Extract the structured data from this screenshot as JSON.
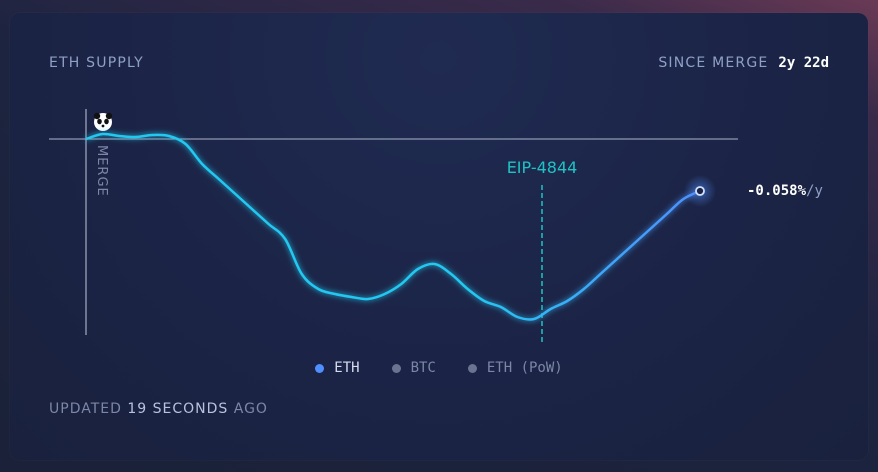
{
  "header": {
    "title": "ETH SUPPLY"
  },
  "since": {
    "label": "SINCE MERGE",
    "value": "2y 22d"
  },
  "rate": {
    "value": "-0.058%",
    "unit": "/y"
  },
  "markers": {
    "merge": "MERGE",
    "event": "EIP-4844"
  },
  "legend": [
    {
      "label": "ETH",
      "active": true
    },
    {
      "label": "BTC",
      "active": false
    },
    {
      "label": "ETH (PoW)",
      "active": false
    }
  ],
  "updated": {
    "prefix": "UPDATED",
    "count": "19 SECONDS",
    "suffix": "AGO"
  },
  "colors": {
    "eth_line": "#24c8f0",
    "eth_line_end": "#4f8fff",
    "eip_marker": "#1fc3c3",
    "baseline": "#8f97b0"
  },
  "icons": {
    "merge_marker": "panda-icon",
    "current_point": "ring-dot-icon"
  },
  "chart_data": {
    "type": "line",
    "series": [
      {
        "name": "ETH",
        "values": [
          0.0,
          0.05,
          0.03,
          0.02,
          0.04,
          0.03,
          -0.05,
          -0.25,
          -0.4,
          -0.55,
          -0.7,
          -0.85,
          -1.0,
          -1.35,
          -1.5,
          -1.55,
          -1.58,
          -1.6,
          -1.55,
          -1.45,
          -1.3,
          -1.25,
          -1.35,
          -1.5,
          -1.62,
          -1.68,
          -1.78,
          -1.8,
          -1.7,
          -1.62,
          -1.5,
          -1.35,
          -1.2,
          -1.05,
          -0.9,
          -0.75,
          -0.6,
          -0.52
        ]
      }
    ],
    "baseline": 0,
    "events": [
      "MERGE",
      "EIP-4844"
    ],
    "grid": false
  }
}
